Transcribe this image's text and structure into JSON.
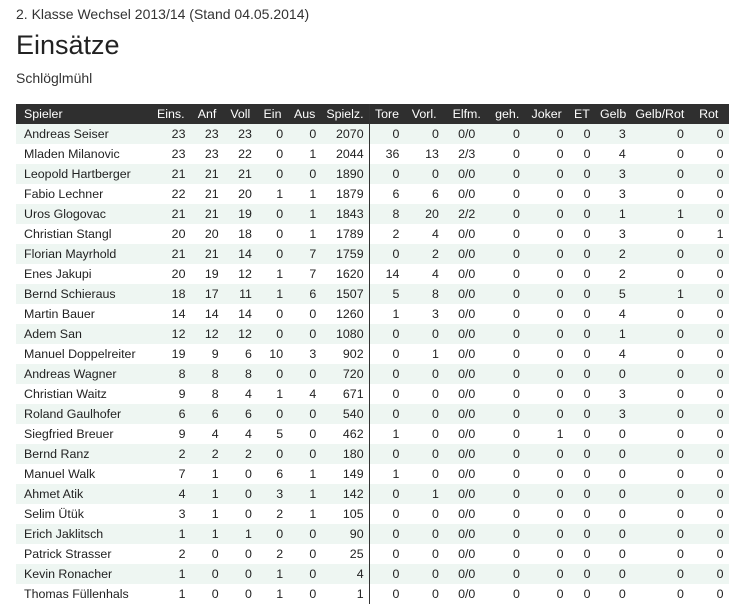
{
  "header": {
    "supertitle": "2. Klasse Wechsel 2013/14 (Stand 04.05.2014)",
    "title": "Einsätze",
    "subtitle": "Schlöglmühl"
  },
  "table": {
    "columns": [
      "Spieler",
      "Eins.",
      "Anf",
      "Voll",
      "Ein",
      "Aus",
      "Spielz.",
      "Tore",
      "Vorl.",
      "Elfm.",
      "geh.",
      "Joker",
      "ET",
      "Gelb",
      "Gelb/Rot",
      "Rot"
    ],
    "rows": [
      [
        "Andreas Seiser",
        "23",
        "23",
        "23",
        "0",
        "0",
        "2070",
        "0",
        "0",
        "0/0",
        "0",
        "0",
        "0",
        "3",
        "0",
        "0"
      ],
      [
        "Mladen Milanovic",
        "23",
        "23",
        "22",
        "0",
        "1",
        "2044",
        "36",
        "13",
        "2/3",
        "0",
        "0",
        "0",
        "4",
        "0",
        "0"
      ],
      [
        "Leopold Hartberger",
        "21",
        "21",
        "21",
        "0",
        "0",
        "1890",
        "0",
        "0",
        "0/0",
        "0",
        "0",
        "0",
        "3",
        "0",
        "0"
      ],
      [
        "Fabio Lechner",
        "22",
        "21",
        "20",
        "1",
        "1",
        "1879",
        "6",
        "6",
        "0/0",
        "0",
        "0",
        "0",
        "3",
        "0",
        "0"
      ],
      [
        "Uros Glogovac",
        "21",
        "21",
        "19",
        "0",
        "1",
        "1843",
        "8",
        "20",
        "2/2",
        "0",
        "0",
        "0",
        "1",
        "1",
        "0"
      ],
      [
        "Christian Stangl",
        "20",
        "20",
        "18",
        "0",
        "1",
        "1789",
        "2",
        "4",
        "0/0",
        "0",
        "0",
        "0",
        "3",
        "0",
        "1"
      ],
      [
        "Florian Mayrhold",
        "21",
        "21",
        "14",
        "0",
        "7",
        "1759",
        "0",
        "2",
        "0/0",
        "0",
        "0",
        "0",
        "2",
        "0",
        "0"
      ],
      [
        "Enes Jakupi",
        "20",
        "19",
        "12",
        "1",
        "7",
        "1620",
        "14",
        "4",
        "0/0",
        "0",
        "0",
        "0",
        "2",
        "0",
        "0"
      ],
      [
        "Bernd Schieraus",
        "18",
        "17",
        "11",
        "1",
        "6",
        "1507",
        "5",
        "8",
        "0/0",
        "0",
        "0",
        "0",
        "5",
        "1",
        "0"
      ],
      [
        "Martin Bauer",
        "14",
        "14",
        "14",
        "0",
        "0",
        "1260",
        "1",
        "3",
        "0/0",
        "0",
        "0",
        "0",
        "4",
        "0",
        "0"
      ],
      [
        "Adem San",
        "12",
        "12",
        "12",
        "0",
        "0",
        "1080",
        "0",
        "0",
        "0/0",
        "0",
        "0",
        "0",
        "1",
        "0",
        "0"
      ],
      [
        "Manuel Doppelreiter",
        "19",
        "9",
        "6",
        "10",
        "3",
        "902",
        "0",
        "1",
        "0/0",
        "0",
        "0",
        "0",
        "4",
        "0",
        "0"
      ],
      [
        "Andreas Wagner",
        "8",
        "8",
        "8",
        "0",
        "0",
        "720",
        "0",
        "0",
        "0/0",
        "0",
        "0",
        "0",
        "0",
        "0",
        "0"
      ],
      [
        "Christian Waitz",
        "9",
        "8",
        "4",
        "1",
        "4",
        "671",
        "0",
        "0",
        "0/0",
        "0",
        "0",
        "0",
        "3",
        "0",
        "0"
      ],
      [
        "Roland Gaulhofer",
        "6",
        "6",
        "6",
        "0",
        "0",
        "540",
        "0",
        "0",
        "0/0",
        "0",
        "0",
        "0",
        "3",
        "0",
        "0"
      ],
      [
        "Siegfried Breuer",
        "9",
        "4",
        "4",
        "5",
        "0",
        "462",
        "1",
        "0",
        "0/0",
        "0",
        "1",
        "0",
        "0",
        "0",
        "0"
      ],
      [
        "Bernd Ranz",
        "2",
        "2",
        "2",
        "0",
        "0",
        "180",
        "0",
        "0",
        "0/0",
        "0",
        "0",
        "0",
        "0",
        "0",
        "0"
      ],
      [
        "Manuel Walk",
        "7",
        "1",
        "0",
        "6",
        "1",
        "149",
        "1",
        "0",
        "0/0",
        "0",
        "0",
        "0",
        "0",
        "0",
        "0"
      ],
      [
        "Ahmet Atik",
        "4",
        "1",
        "0",
        "3",
        "1",
        "142",
        "0",
        "1",
        "0/0",
        "0",
        "0",
        "0",
        "0",
        "0",
        "0"
      ],
      [
        "Selim Ütük",
        "3",
        "1",
        "0",
        "2",
        "1",
        "105",
        "0",
        "0",
        "0/0",
        "0",
        "0",
        "0",
        "0",
        "0",
        "0"
      ],
      [
        "Erich Jaklitsch",
        "1",
        "1",
        "1",
        "0",
        "0",
        "90",
        "0",
        "0",
        "0/0",
        "0",
        "0",
        "0",
        "0",
        "0",
        "0"
      ],
      [
        "Patrick Strasser",
        "2",
        "0",
        "0",
        "2",
        "0",
        "25",
        "0",
        "0",
        "0/0",
        "0",
        "0",
        "0",
        "0",
        "0",
        "0"
      ],
      [
        "Kevin Ronacher",
        "1",
        "0",
        "0",
        "1",
        "0",
        "4",
        "0",
        "0",
        "0/0",
        "0",
        "0",
        "0",
        "0",
        "0",
        "0"
      ],
      [
        "Thomas Füllenhals",
        "1",
        "0",
        "0",
        "1",
        "0",
        "1",
        "0",
        "0",
        "0/0",
        "0",
        "0",
        "0",
        "0",
        "0",
        "0"
      ]
    ]
  },
  "colors": {
    "header_bg": "#2f2f2f",
    "row_stripe": "#eef6f2"
  }
}
